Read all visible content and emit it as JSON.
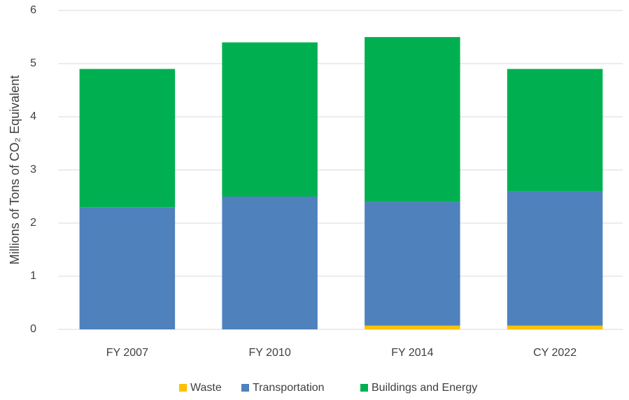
{
  "chart_data": {
    "type": "stacked_bar",
    "y_label": "Millions of Tons of CO₂ Equivalent",
    "categories": [
      "FY 2007",
      "FY 2010",
      "FY 2014",
      "CY 2022"
    ],
    "series": [
      {
        "name": "Waste",
        "color": "#ffc000",
        "values": [
          0,
          0,
          0.07,
          0.07
        ]
      },
      {
        "name": "Transportation",
        "color": "#4f81bd",
        "values": [
          2.3,
          2.5,
          2.33,
          2.53
        ]
      },
      {
        "name": "Buildings and Energy",
        "color": "#00b050",
        "values": [
          2.6,
          2.9,
          3.1,
          2.3
        ]
      }
    ],
    "ylim": [
      0,
      6
    ],
    "yticks": [
      0,
      1,
      2,
      3,
      4,
      5,
      6
    ],
    "grid": true,
    "legend": "bottom"
  }
}
